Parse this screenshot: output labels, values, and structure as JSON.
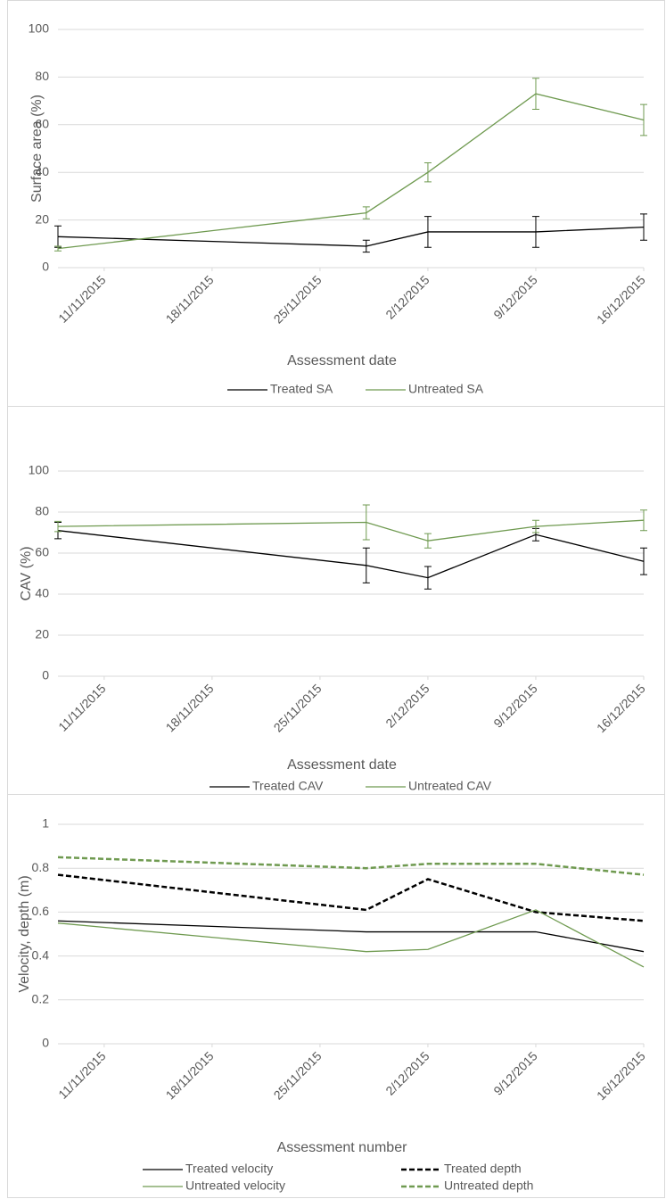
{
  "chart_data": [
    {
      "type": "line",
      "x_label": "Assessment date",
      "y_label": "Surface area (%)",
      "x": [
        "2015-11-08",
        "2015-11-28",
        "2015-12-02",
        "2015-12-09",
        "2015-12-16"
      ],
      "xlim": [
        "2015-11-08",
        "2015-12-16"
      ],
      "xticks": [
        {
          "value": "2015-11-11",
          "label": "11/11/2015"
        },
        {
          "value": "2015-11-18",
          "label": "18/11/2015"
        },
        {
          "value": "2015-11-25",
          "label": "25/11/2015"
        },
        {
          "value": "2015-12-02",
          "label": "2/12/2015"
        },
        {
          "value": "2015-12-09",
          "label": "9/12/2015"
        },
        {
          "value": "2015-12-16",
          "label": "16/12/2015"
        }
      ],
      "ylim": [
        0,
        100
      ],
      "yticks": [
        0,
        20,
        40,
        60,
        80,
        100
      ],
      "grid": true,
      "legend": "bottom",
      "series": [
        {
          "name": "Treated SA",
          "color": "#000000",
          "values": [
            13,
            9,
            15,
            15,
            17
          ],
          "errors": [
            4.5,
            2.5,
            6.5,
            6.5,
            5.5
          ]
        },
        {
          "name": "Untreated SA",
          "color": "#6f9a50",
          "values": [
            8,
            23,
            40,
            73,
            62
          ],
          "errors": [
            1,
            2.5,
            4,
            6.5,
            6.5
          ]
        }
      ]
    },
    {
      "type": "line",
      "x_label": "Assessment date",
      "y_label": "CAV (%)",
      "x": [
        "2015-11-08",
        "2015-11-28",
        "2015-12-02",
        "2015-12-09",
        "2015-12-16"
      ],
      "xlim": [
        "2015-11-08",
        "2015-12-16"
      ],
      "xticks": [
        {
          "value": "2015-11-11",
          "label": "11/11/2015"
        },
        {
          "value": "2015-11-18",
          "label": "18/11/2015"
        },
        {
          "value": "2015-11-25",
          "label": "25/11/2015"
        },
        {
          "value": "2015-12-02",
          "label": "2/12/2015"
        },
        {
          "value": "2015-12-09",
          "label": "9/12/2015"
        },
        {
          "value": "2015-12-16",
          "label": "16/12/2015"
        }
      ],
      "ylim": [
        0,
        100
      ],
      "yticks": [
        0,
        20,
        40,
        60,
        80,
        100
      ],
      "grid": true,
      "legend": "bottom",
      "series": [
        {
          "name": "Treated CAV",
          "color": "#000000",
          "values": [
            71,
            54,
            48,
            69,
            56
          ],
          "errors": [
            4,
            8.5,
            5.5,
            3,
            6.5
          ]
        },
        {
          "name": "Untreated CAV",
          "color": "#6f9a50",
          "values": [
            73,
            75,
            66,
            73,
            76
          ],
          "errors": [
            2.5,
            8.5,
            3.5,
            3,
            5
          ]
        }
      ]
    },
    {
      "type": "line",
      "x_label": "Assessment number",
      "y_label": "Velocity, depth (m)",
      "x": [
        "2015-11-08",
        "2015-11-28",
        "2015-12-02",
        "2015-12-09",
        "2015-12-16"
      ],
      "xlim": [
        "2015-11-08",
        "2015-12-16"
      ],
      "xticks": [
        {
          "value": "2015-11-11",
          "label": "11/11/2015"
        },
        {
          "value": "2015-11-18",
          "label": "18/11/2015"
        },
        {
          "value": "2015-11-25",
          "label": "25/11/2015"
        },
        {
          "value": "2015-12-02",
          "label": "2/12/2015"
        },
        {
          "value": "2015-12-09",
          "label": "9/12/2015"
        },
        {
          "value": "2015-12-16",
          "label": "16/12/2015"
        }
      ],
      "ylim": [
        0,
        1
      ],
      "yticks": [
        0,
        0.2,
        0.4,
        0.6,
        0.8,
        1
      ],
      "grid": true,
      "legend": "bottom",
      "series": [
        {
          "name": "Treated velocity",
          "color": "#000000",
          "values": [
            0.56,
            0.51,
            0.51,
            0.51,
            0.42
          ]
        },
        {
          "name": "Treated depth",
          "color": "#000000",
          "dashed": true,
          "values": [
            0.77,
            0.61,
            0.75,
            0.6,
            0.56
          ]
        },
        {
          "name": "Untreated velocity",
          "color": "#6f9a50",
          "values": [
            0.55,
            0.42,
            0.43,
            0.61,
            0.35
          ]
        },
        {
          "name": "Untreated depth",
          "color": "#6f9a50",
          "dashed": true,
          "values": [
            0.85,
            0.8,
            0.82,
            0.82,
            0.77
          ]
        }
      ]
    }
  ]
}
